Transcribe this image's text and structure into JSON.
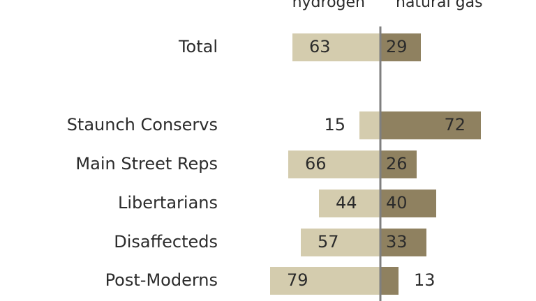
{
  "chart_data": {
    "type": "bar",
    "orientation": "diverging-horizontal",
    "series_headers": [
      "hydrogen",
      "natural gas"
    ],
    "categories": [
      "Total",
      "Staunch Conservs",
      "Main Street Reps",
      "Libertarians",
      "Disaffecteds",
      "Post-Moderns"
    ],
    "series": [
      {
        "name": "hydrogen",
        "values": [
          63,
          15,
          66,
          44,
          57,
          79
        ]
      },
      {
        "name": "natural gas",
        "values": [
          29,
          72,
          26,
          40,
          33,
          13
        ]
      }
    ],
    "colors": {
      "hydrogen": "#d4ccae",
      "natural_gas": "#8f8160",
      "axis": "#7f7f7f"
    }
  }
}
